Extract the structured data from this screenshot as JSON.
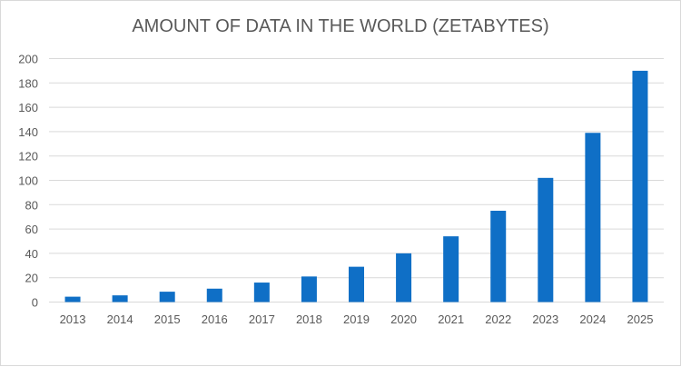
{
  "chart_data": {
    "type": "bar",
    "title": "AMOUNT OF DATA IN THE WORLD (ZETABYTES)",
    "xlabel": "",
    "ylabel": "",
    "ylim": [
      0,
      200
    ],
    "yticks": [
      0,
      20,
      40,
      60,
      80,
      100,
      120,
      140,
      160,
      180,
      200
    ],
    "grid": true,
    "categories": [
      "2013",
      "2014",
      "2015",
      "2016",
      "2017",
      "2018",
      "2019",
      "2020",
      "2021",
      "2022",
      "2023",
      "2024",
      "2025"
    ],
    "values": [
      4.4,
      5.5,
      8.5,
      11,
      16,
      21,
      29,
      40,
      54,
      75,
      102,
      139,
      190
    ],
    "bar_color": "#0f6fc6",
    "grid_color": "#d9d9d9"
  }
}
